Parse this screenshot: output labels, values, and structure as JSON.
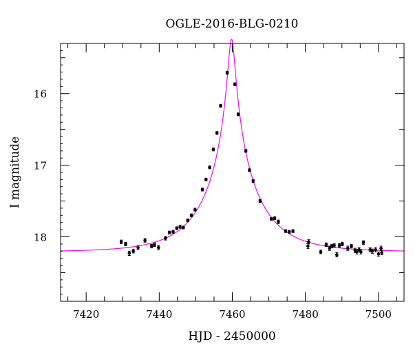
{
  "chart_data": {
    "type": "scatter",
    "title": "OGLE-2016-BLG-0210",
    "xlabel": "HJD - 2450000",
    "ylabel": "I magnitude",
    "xlim": [
      7413,
      7507
    ],
    "ylim": [
      18.9,
      15.3
    ],
    "y_inverted": true,
    "grid": false,
    "x_ticks": [
      7420,
      7440,
      7460,
      7480,
      7500
    ],
    "x_tick_labels": [
      "7420",
      "7440",
      "7460",
      "7480",
      "7500"
    ],
    "y_ticks": [
      16,
      17,
      18
    ],
    "y_tick_labels": [
      "16",
      "17",
      "18"
    ],
    "model_color": "#ff00ff",
    "point_color": "#000000",
    "model": {
      "t0": 7459.8,
      "u0": 0.065,
      "tE": 14.0,
      "I_base": 18.21
    },
    "series": [
      {
        "points": [
          [
            7429.6,
            18.07,
            0.025
          ],
          [
            7430.8,
            18.1,
            0.025
          ],
          [
            7431.8,
            18.23,
            0.03
          ],
          [
            7432.9,
            18.2,
            0.025
          ],
          [
            7434.2,
            18.15,
            0.025
          ],
          [
            7436.1,
            18.05,
            0.025
          ],
          [
            7437.9,
            18.13,
            0.025
          ],
          [
            7438.7,
            18.11,
            0.025
          ],
          [
            7439.8,
            18.15,
            0.03
          ],
          [
            7441.7,
            18.02,
            0.025
          ],
          [
            7442.8,
            17.94,
            0.02
          ],
          [
            7443.8,
            17.93,
            0.02
          ],
          [
            7444.8,
            17.88,
            0.02
          ],
          [
            7445.7,
            17.86,
            0.02
          ],
          [
            7446.6,
            17.87,
            0.02
          ],
          [
            7447.8,
            17.77,
            0.02
          ],
          [
            7448.8,
            17.7,
            0.02
          ],
          [
            7449.8,
            17.62,
            0.02
          ],
          [
            7451.8,
            17.34,
            0.02
          ],
          [
            7452.8,
            17.2,
            0.02
          ],
          [
            7453.8,
            17.03,
            0.02
          ],
          [
            7454.8,
            16.78,
            0.02
          ],
          [
            7455.8,
            16.55,
            0.02
          ],
          [
            7456.8,
            16.17,
            0.02
          ],
          [
            7458.6,
            15.71,
            0.02
          ],
          [
            7460.7,
            15.87,
            0.02
          ],
          [
            7461.6,
            16.29,
            0.02
          ],
          [
            7463.7,
            16.8,
            0.02
          ],
          [
            7464.7,
            17.07,
            0.02
          ],
          [
            7465.7,
            17.22,
            0.02
          ],
          [
            7467.6,
            17.5,
            0.02
          ],
          [
            7470.7,
            17.75,
            0.02
          ],
          [
            7471.6,
            17.74,
            0.02
          ],
          [
            7472.6,
            17.79,
            0.025
          ],
          [
            7474.6,
            17.92,
            0.02
          ],
          [
            7475.6,
            17.93,
            0.02
          ],
          [
            7476.6,
            17.92,
            0.02
          ],
          [
            7480.7,
            18.13,
            0.035
          ],
          [
            7480.9,
            18.07,
            0.03
          ],
          [
            7484.2,
            18.21,
            0.025
          ],
          [
            7485.7,
            18.11,
            0.025
          ],
          [
            7486.6,
            18.16,
            0.03
          ],
          [
            7487.2,
            18.13,
            0.025
          ],
          [
            7487.9,
            18.12,
            0.025
          ],
          [
            7488.6,
            18.25,
            0.03
          ],
          [
            7489.3,
            18.12,
            0.025
          ],
          [
            7490.1,
            18.1,
            0.025
          ],
          [
            7491.6,
            18.16,
            0.03
          ],
          [
            7492.6,
            18.13,
            0.025
          ],
          [
            7493.6,
            18.19,
            0.03
          ],
          [
            7494.1,
            18.21,
            0.03
          ],
          [
            7494.7,
            18.18,
            0.03
          ],
          [
            7495.2,
            18.21,
            0.03
          ],
          [
            7495.9,
            18.08,
            0.025
          ],
          [
            7497.7,
            18.18,
            0.03
          ],
          [
            7498.3,
            18.2,
            0.03
          ],
          [
            7499.2,
            18.18,
            0.03
          ],
          [
            7500.0,
            18.24,
            0.03
          ],
          [
            7500.7,
            18.16,
            0.03
          ],
          [
            7500.9,
            18.22,
            0.03
          ]
        ]
      }
    ]
  }
}
